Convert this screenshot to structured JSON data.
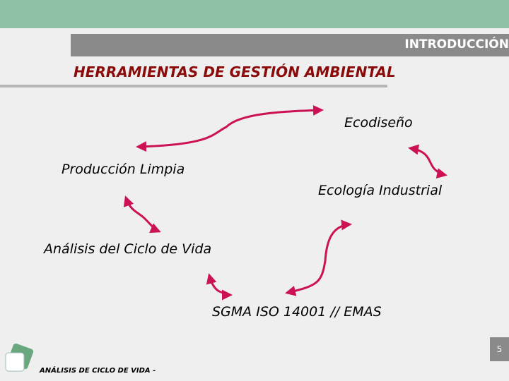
{
  "header": {
    "section": "INTRODUCCIÓN",
    "title": "HERRAMIENTAS DE GESTIÓN AMBIENTAL"
  },
  "nodes": [
    {
      "label": "Ecodiseño"
    },
    {
      "label": "Producción Limpia"
    },
    {
      "label": "Ecología Industrial"
    },
    {
      "label": "Análisis del Ciclo de Vida"
    },
    {
      "label": "SGMA ISO 14001 // EMAS"
    }
  ],
  "footer": {
    "text": "ANÁLISIS DE CICLO DE VIDA -",
    "page": "5"
  }
}
